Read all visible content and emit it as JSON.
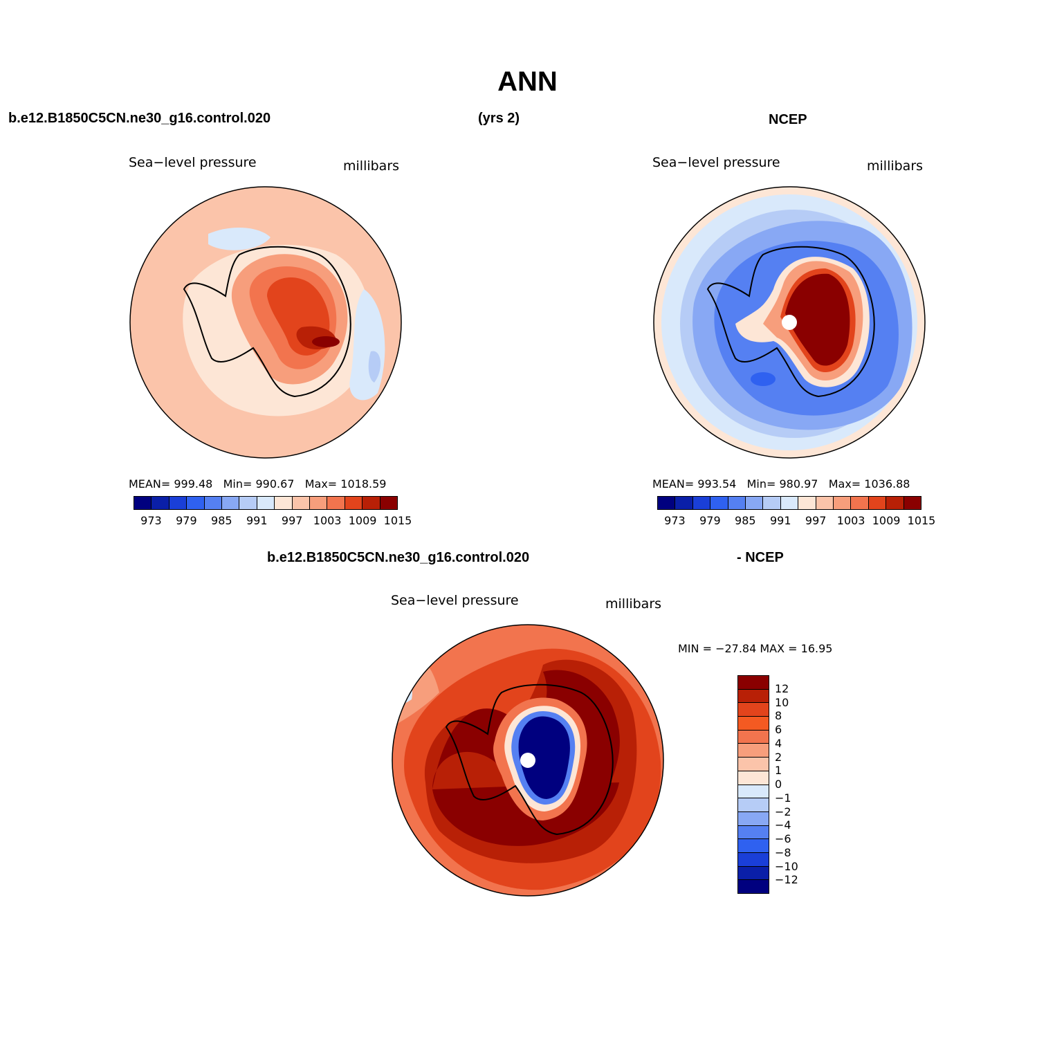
{
  "title": "ANN",
  "panel1": {
    "case_name": "b.e12.B1850C5CN.ne30_g16.control.020",
    "years": "(yrs 2)",
    "variable": "Sea−level pressure",
    "units": "millibars",
    "mean_label": "MEAN=",
    "mean": "999.48",
    "min_label": "Min=",
    "min": "990.67",
    "max_label": "Max=",
    "max": "1018.59"
  },
  "panel2": {
    "case_name": "NCEP",
    "variable": "Sea−level pressure",
    "units": "millibars",
    "mean_label": "MEAN=",
    "mean": "993.54",
    "min_label": "Min=",
    "min": "980.97",
    "max_label": "Max=",
    "max": "1036.88"
  },
  "panel3": {
    "case_name": "b.e12.B1850C5CN.ne30_g16.control.020",
    "suffix": "- NCEP",
    "variable": "Sea−level pressure",
    "units": "millibars",
    "minmax": "MIN = −27.84  MAX =   16.95"
  },
  "colorbar_abs": {
    "ticks": [
      "973",
      "979",
      "985",
      "991",
      "997",
      "1003",
      "1009",
      "1015"
    ],
    "colors": [
      "#00007f",
      "#0a1fa8",
      "#1a3fd8",
      "#2f61f0",
      "#5580f2",
      "#88a8f4",
      "#b6ccf6",
      "#d9e9fb",
      "#fde6d6",
      "#fbc4aa",
      "#f79e7c",
      "#f2744e",
      "#e2441c",
      "#b82006",
      "#8a0000"
    ]
  },
  "colorbar_diff": {
    "labels": [
      "12",
      "10",
      "8",
      "6",
      "4",
      "2",
      "1",
      "0",
      "−1",
      "−2",
      "−4",
      "−6",
      "−8",
      "−10",
      "−12"
    ],
    "colors": [
      "#8a0000",
      "#b82006",
      "#e2441c",
      "#f45a22",
      "#f2744e",
      "#f79e7c",
      "#fbc4aa",
      "#fde6d6",
      "#d9e9fb",
      "#b6ccf6",
      "#88a8f4",
      "#5580f2",
      "#2f61f0",
      "#1a3fd8",
      "#0a1fa8",
      "#00007f"
    ]
  },
  "map_colors": {
    "light_orange": "#fde6d6",
    "peach": "#fbc4aa",
    "salmon": "#f79e7c",
    "orange": "#f2744e",
    "red_orange": "#e2441c",
    "dark_red": "#b82006",
    "maroon": "#8a0000",
    "light_blue": "#d9e9fb",
    "pale_blue": "#b6ccf6",
    "mid_blue": "#88a8f4",
    "blue": "#5580f2",
    "deep_blue": "#2f61f0",
    "navy": "#00007f"
  }
}
